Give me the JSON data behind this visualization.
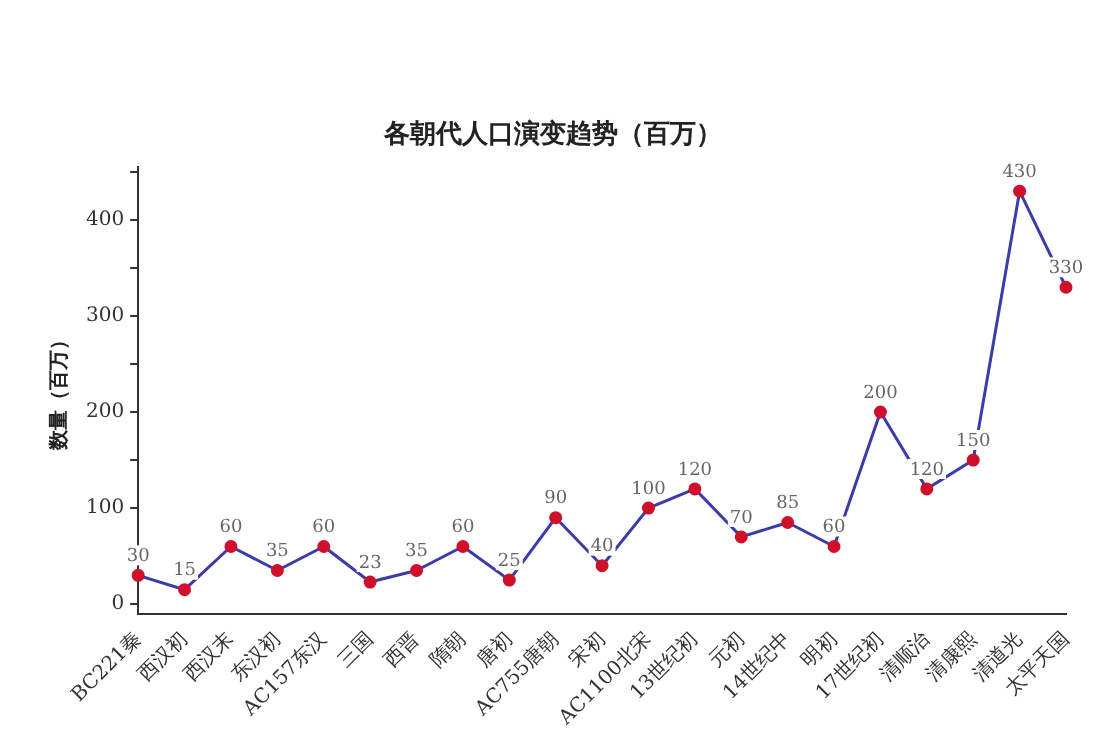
{
  "chart_data": {
    "type": "line",
    "title": "各朝代人口演变趋势（百万）",
    "ylabel": "数量（百万）",
    "categories": [
      "BC221秦",
      "西汉初",
      "西汉末",
      "东汉初",
      "AC157东汉",
      "三国",
      "西晋",
      "隋朝",
      "唐初",
      "AC755唐朝",
      "宋初",
      "AC1100北宋",
      "13世纪初",
      "元初",
      "14世纪中",
      "明初",
      "17世纪初",
      "清顺治",
      "清康熙",
      "清道光",
      "太平天国"
    ],
    "series": [
      {
        "color": "#3b3bab",
        "colors": [
          "#d0102a",
          "#d0102a",
          "#d0102a",
          "#d0102a",
          "#d0102a",
          "#d0102a",
          "#d0102a",
          "#d0102a",
          "#d0102a",
          "#d0102a",
          "#d0102a",
          "#d0102a",
          "#d0102a",
          "#d0102a",
          "#d0102a",
          "#d0102a",
          "#d0102a",
          "#d0102a",
          "#d0102a",
          "#d0102a",
          "#d0102a"
        ],
        "values": [
          30,
          15,
          60,
          35,
          60,
          23,
          35,
          60,
          25,
          90,
          40,
          100,
          120,
          70,
          85,
          60,
          200,
          120,
          150,
          430,
          330
        ]
      }
    ],
    "marker": "circle",
    "line_style": "solid",
    "ylim": [
      -10,
      455
    ],
    "yticks": [
      0,
      {
        "value": 50,
        "label": null
      },
      100,
      {
        "value": 150,
        "label": null
      },
      200,
      {
        "value": 250,
        "label": null
      },
      300,
      {
        "value": 350,
        "label": null
      },
      400,
      {
        "value": 450,
        "label": null
      }
    ],
    "grid": false,
    "legend": false,
    "data_labels": true
  }
}
